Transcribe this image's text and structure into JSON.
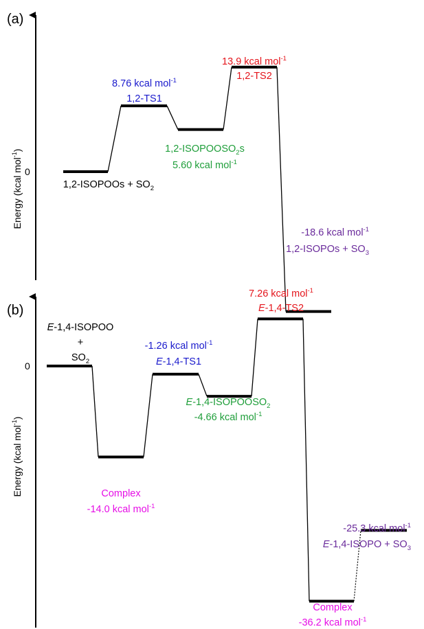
{
  "colors": {
    "black": "#000000",
    "ts1": "#1a1acc",
    "ts2": "#e4141b",
    "intermediate": "#1f9e3a",
    "product": "#6a2b9b",
    "complex": "#e60ee6"
  },
  "panels": [
    {
      "id": "a",
      "label": "(a)",
      "ylabel": "Energy (kcal mol",
      "ylabel_sup": "-1",
      "ylabel_close": ")",
      "zero_tick": "0",
      "levels": [
        {
          "key": "reactant",
          "energy": 0.0,
          "lines": [
            {
              "parts": [
                {
                  "t": "1,2-ISOPOOs + SO"
                },
                {
                  "t": "2",
                  "sub": true
                }
              ]
            }
          ],
          "color": "black"
        },
        {
          "key": "ts1",
          "energy": 8.76,
          "lines": [
            {
              "parts": [
                {
                  "t": "8.76 kcal mol"
                },
                {
                  "t": "-1",
                  "sup": true
                }
              ]
            },
            {
              "parts": [
                {
                  "t": "1,2-TS1"
                }
              ]
            }
          ],
          "color": "ts1"
        },
        {
          "key": "intermediate",
          "energy": 5.6,
          "lines": [
            {
              "parts": [
                {
                  "t": "1,2-ISOPOOSO"
                },
                {
                  "t": "2",
                  "sub": true
                },
                {
                  "t": "s"
                }
              ]
            },
            {
              "parts": [
                {
                  "t": "5.60 kcal mol"
                },
                {
                  "t": "-1",
                  "sup": true
                }
              ]
            }
          ],
          "color": "intermediate"
        },
        {
          "key": "ts2",
          "energy": 13.9,
          "lines": [
            {
              "parts": [
                {
                  "t": "13.9 kcal mol"
                },
                {
                  "t": "-1",
                  "sup": true
                }
              ]
            },
            {
              "parts": [
                {
                  "t": "1,2-TS2"
                }
              ]
            }
          ],
          "color": "ts2"
        },
        {
          "key": "product",
          "energy": -18.6,
          "lines": [
            {
              "parts": [
                {
                  "t": "-18.6 kcal mol"
                },
                {
                  "t": "-1",
                  "sup": true
                }
              ]
            },
            {
              "parts": [
                {
                  "t": "1,2-ISOPOs + SO"
                },
                {
                  "t": "3",
                  "sub": true
                }
              ]
            }
          ],
          "color": "product"
        }
      ]
    },
    {
      "id": "b",
      "label": "(b)",
      "ylabel": "Energy (kcal mol",
      "ylabel_sup": "-1",
      "ylabel_close": ")",
      "zero_tick": "0",
      "levels": [
        {
          "key": "reactant",
          "energy": 0.0,
          "lines": [
            {
              "parts": [
                {
                  "t": "E",
                  "it": true
                },
                {
                  "t": "-1,4-ISOPOO"
                }
              ]
            },
            {
              "parts": [
                {
                  "t": "+"
                }
              ]
            },
            {
              "parts": [
                {
                  "t": "SO"
                },
                {
                  "t": "2",
                  "sub": true
                }
              ]
            }
          ],
          "color": "black"
        },
        {
          "key": "complex1",
          "energy": -14.0,
          "lines": [
            {
              "parts": [
                {
                  "t": "Complex"
                }
              ]
            },
            {
              "parts": [
                {
                  "t": "-14.0 kcal mol"
                },
                {
                  "t": "-1",
                  "sup": true
                }
              ]
            }
          ],
          "color": "complex"
        },
        {
          "key": "ts1",
          "energy": -1.26,
          "lines": [
            {
              "parts": [
                {
                  "t": "-1.26 kcal mol"
                },
                {
                  "t": "-1",
                  "sup": true
                }
              ]
            },
            {
              "parts": [
                {
                  "t": "E",
                  "it": true
                },
                {
                  "t": "-1,4-TS1"
                }
              ]
            }
          ],
          "color": "ts1"
        },
        {
          "key": "intermediate",
          "energy": -4.66,
          "lines": [
            {
              "parts": [
                {
                  "t": "E",
                  "it": true
                },
                {
                  "t": "-1,4-ISOPOOSO"
                },
                {
                  "t": "2",
                  "sub": true
                }
              ]
            },
            {
              "parts": [
                {
                  "t": "-4.66 kcal mol"
                },
                {
                  "t": "-1",
                  "sup": true
                }
              ]
            }
          ],
          "color": "intermediate"
        },
        {
          "key": "ts2",
          "energy": 7.26,
          "lines": [
            {
              "parts": [
                {
                  "t": "7.26 kcal mol"
                },
                {
                  "t": "-1",
                  "sup": true
                }
              ]
            },
            {
              "parts": [
                {
                  "t": "E",
                  "it": true
                },
                {
                  "t": "-1,4-TS2"
                }
              ]
            }
          ],
          "color": "ts2"
        },
        {
          "key": "complex2",
          "energy": -36.2,
          "lines": [
            {
              "parts": [
                {
                  "t": "Complex"
                }
              ]
            },
            {
              "parts": [
                {
                  "t": "-36.2 kcal mol"
                },
                {
                  "t": "-1",
                  "sup": true
                }
              ]
            }
          ],
          "color": "complex"
        },
        {
          "key": "product",
          "energy": -25.3,
          "lines": [
            {
              "parts": [
                {
                  "t": "-25.3 kcal mol"
                },
                {
                  "t": "-1",
                  "sup": true
                }
              ]
            },
            {
              "parts": [
                {
                  "t": "E",
                  "it": true
                },
                {
                  "t": "-1,4-ISOPO + SO"
                },
                {
                  "t": "3",
                  "sub": true
                }
              ]
            }
          ],
          "color": "product"
        }
      ]
    }
  ]
}
